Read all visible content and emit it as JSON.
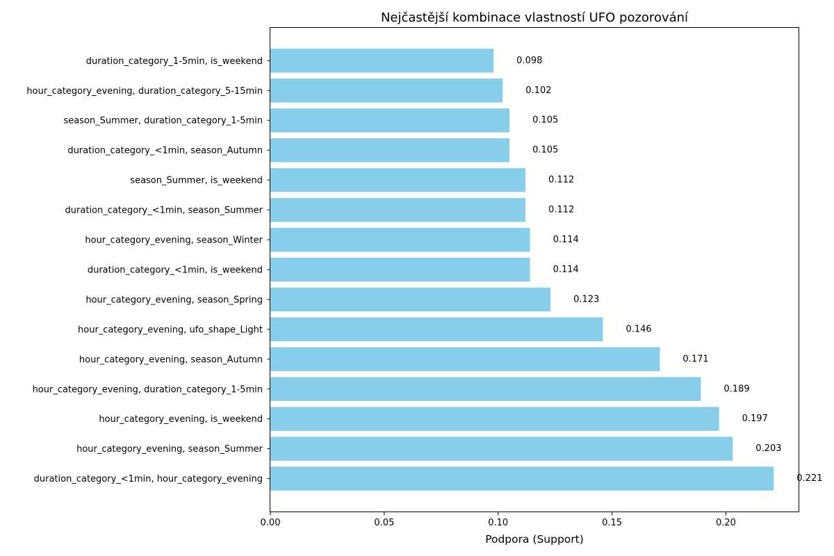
{
  "chart_data": {
    "type": "bar",
    "orientation": "horizontal",
    "title": "Nejčastější kombinace vlastností UFO pozorování",
    "xlabel": "Podpora (Support)",
    "ylabel": "",
    "xlim": [
      0,
      0.2322
    ],
    "x_ticks": [
      "0.00",
      "0.05",
      "0.10",
      "0.15",
      "0.20"
    ],
    "x_tick_values": [
      0,
      0.05,
      0.1,
      0.15,
      0.2
    ],
    "grid": false,
    "bar_color": "#87ceeb",
    "categories": [
      "duration_category_<1min, hour_category_evening",
      "hour_category_evening, season_Summer",
      "hour_category_evening, is_weekend",
      "hour_category_evening, duration_category_1-5min",
      "hour_category_evening, season_Autumn",
      "hour_category_evening, ufo_shape_Light",
      "hour_category_evening, season_Spring",
      "duration_category_<1min, is_weekend",
      "hour_category_evening, season_Winter",
      "duration_category_<1min, season_Summer",
      "season_Summer, is_weekend",
      "duration_category_<1min, season_Autumn",
      "season_Summer, duration_category_1-5min",
      "hour_category_evening, duration_category_5-15min",
      "duration_category_1-5min, is_weekend"
    ],
    "values": [
      0.221,
      0.203,
      0.197,
      0.189,
      0.171,
      0.146,
      0.123,
      0.114,
      0.114,
      0.112,
      0.112,
      0.105,
      0.105,
      0.102,
      0.098
    ],
    "value_labels": [
      "0.221",
      "0.203",
      "0.197",
      "0.189",
      "0.171",
      "0.146",
      "0.123",
      "0.114",
      "0.114",
      "0.112",
      "0.112",
      "0.105",
      "0.105",
      "0.102",
      "0.098"
    ]
  }
}
